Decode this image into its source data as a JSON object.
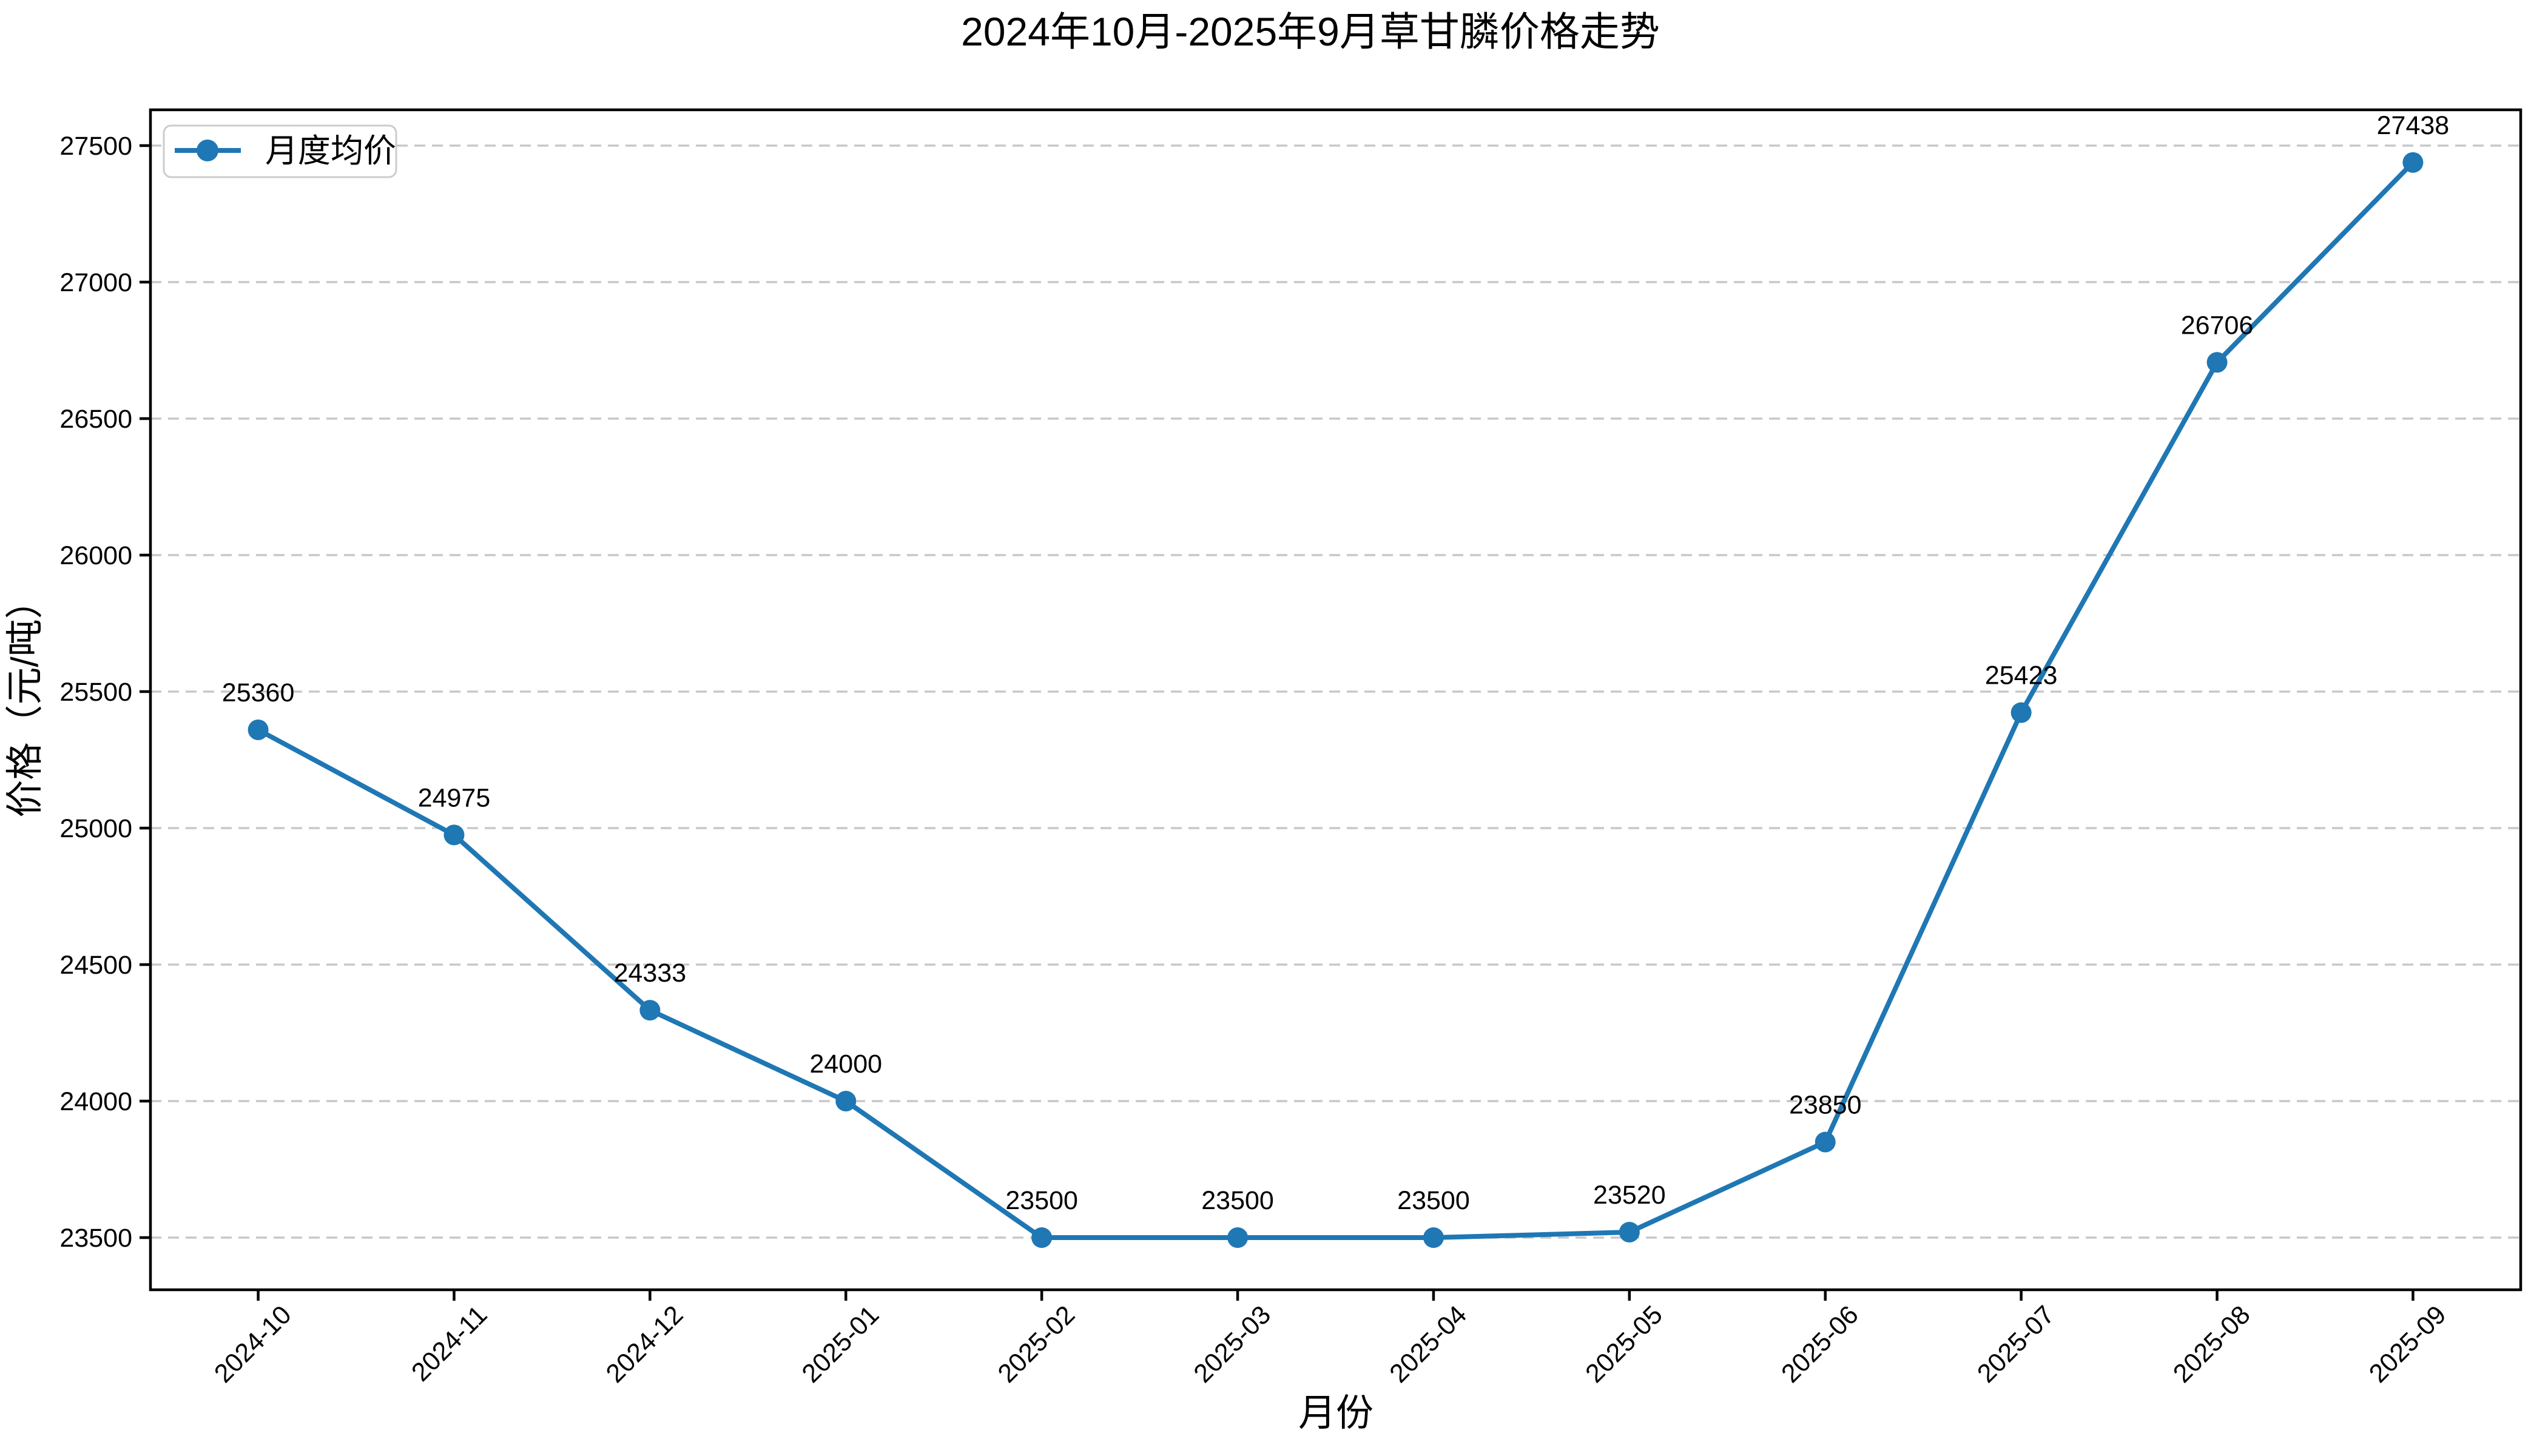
{
  "chart_data": {
    "type": "line",
    "title": "2024年10月-2025年9月草甘膦价格走势",
    "xlabel": "月份",
    "ylabel": "价格（元/吨）",
    "categories": [
      "2024-10",
      "2024-11",
      "2024-12",
      "2025-01",
      "2025-02",
      "2025-03",
      "2025-04",
      "2025-05",
      "2025-06",
      "2025-07",
      "2025-08",
      "2025-09"
    ],
    "series": [
      {
        "name": "月度均价",
        "values": [
          25360,
          24975,
          24333,
          24000,
          23500,
          23500,
          23500,
          23520,
          23850,
          25423,
          26706,
          27438
        ]
      }
    ],
    "point_labels": [
      25360,
      24975,
      24333,
      24000,
      23500,
      23500,
      23500,
      23520,
      23850,
      25423,
      26706,
      27438
    ],
    "yticks": [
      23500,
      24000,
      24500,
      25000,
      25500,
      26000,
      26500,
      27000,
      27500
    ],
    "ylim": [
      23309,
      27631
    ],
    "grid": "horizontal-dashed",
    "legend_position": "upper-left",
    "line_color": "#1f77b4",
    "marker": "circle",
    "grid_color": "#c8c8c8",
    "text_color": "#000000",
    "legend_border_color": "#cccccc",
    "background_color": "#ffffff"
  }
}
